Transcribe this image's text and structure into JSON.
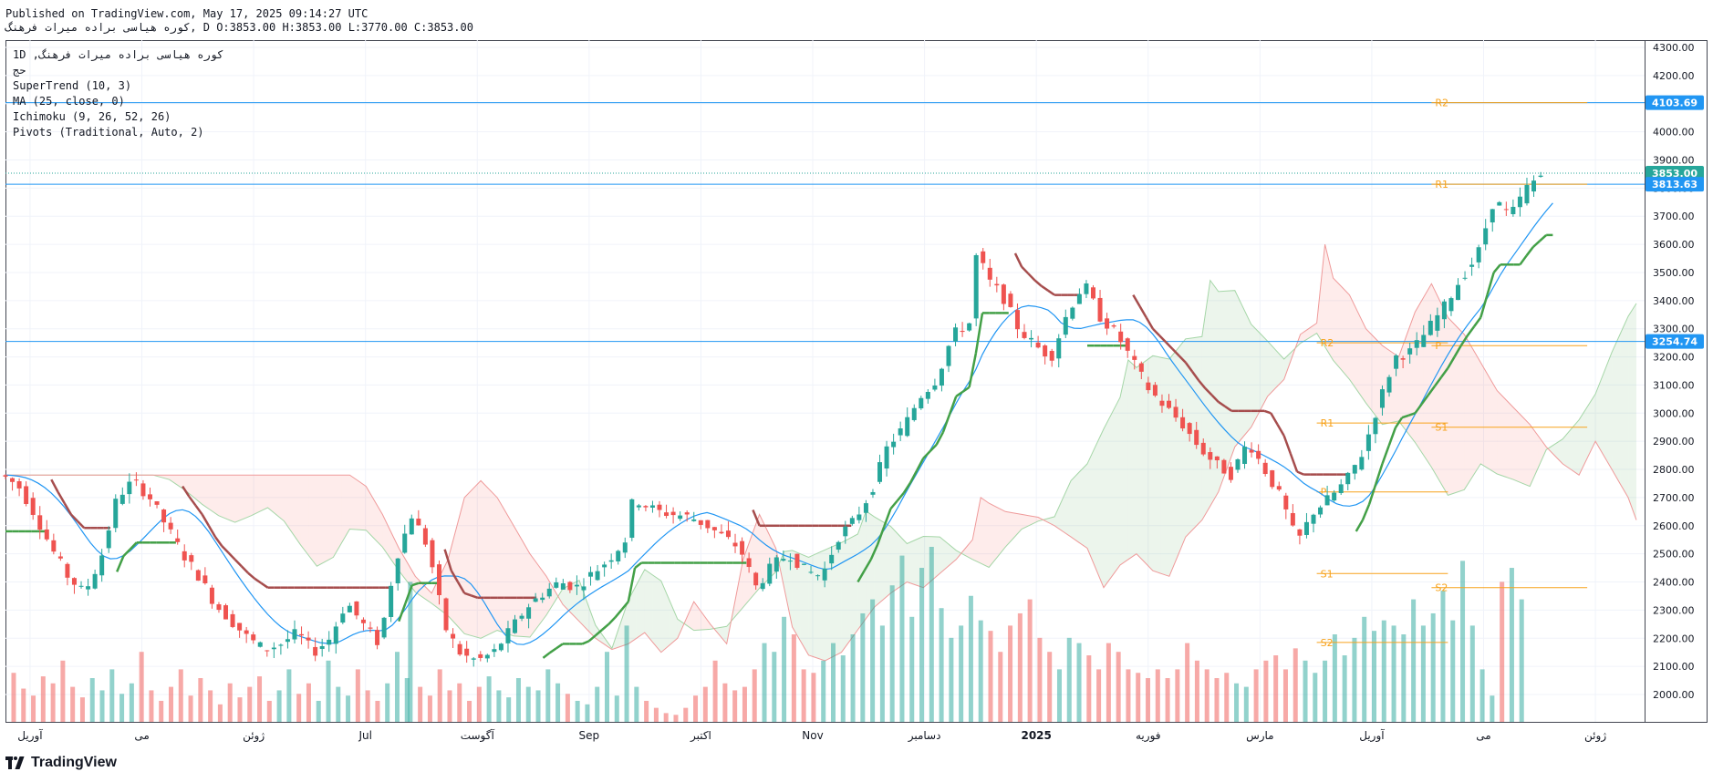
{
  "header": {
    "published": "Published on TradingView.com, May 17, 2025 09:14:27 UTC",
    "symbol_line": "ﮐﻮﺭﻩ ﻫﯿﺎﺳﯽ ﺑﺮاﺩﻩ ﻣﻴﺮاﺕ ﻓﺮﻫﻨﮓ, D O:3853.00 H:3853.00 L:3770.00 C:3853.00"
  },
  "legend": {
    "title": "1D ,ﮐﻮﺭﻩ ﻫﯿﺎﺳﯽ ﺑﺮاﺩﻩ ﻣﻴﺮاﺕ ﻓﺮﻫﻨﮓ",
    "sub": "ﺣﺞ",
    "indicators": [
      "SuperTrend (10, 3)",
      "MA (25, close, 0)",
      "Ichimoku (9, 26, 52, 26)",
      "Pivots (Traditional, Auto, 2)"
    ]
  },
  "footer": {
    "brand": "TradingView"
  },
  "chart_data": {
    "type": "candlestick",
    "ylim": [
      1900,
      4350
    ],
    "y_ticks": [
      2000,
      2100,
      2200,
      2300,
      2400,
      2500,
      2600,
      2700,
      2800,
      2900,
      3000,
      3100,
      3200,
      3300,
      3400,
      3500,
      3600,
      3700,
      3800,
      3900,
      4000,
      4100,
      4200,
      4300
    ],
    "x_ticks": [
      "آوریل",
      "می",
      "ژوئن",
      "Jul",
      "آگوست",
      "Sep",
      "اکتبر",
      "Nov",
      "دسامبر",
      "2025",
      "فوریه",
      "مارس",
      "آوریل",
      "می",
      "ژوئن"
    ],
    "price_labels": [
      {
        "value": 4103.69,
        "text": "4103.69",
        "color": "#2196f3"
      },
      {
        "value": 3853.0,
        "text": "3853.00",
        "color": "#26a69a"
      },
      {
        "value": 3813.63,
        "text": "3813.63",
        "color": "#2196f3"
      },
      {
        "value": 3254.74,
        "text": "3254.74",
        "color": "#2196f3"
      }
    ],
    "horizontal_lines": [
      4103.69,
      3813.63,
      3254.74
    ],
    "last_price": 3853.0,
    "pivot_levels": [
      {
        "label": "R2",
        "value": 4103.69,
        "from": 0.87,
        "to": 0.965
      },
      {
        "label": "R1",
        "value": 3813.63,
        "from": 0.87,
        "to": 0.965
      },
      {
        "label": "P",
        "value": 3240,
        "from": 0.87,
        "to": 0.965
      },
      {
        "label": "S1",
        "value": 2950,
        "from": 0.87,
        "to": 0.965
      },
      {
        "label": "S2",
        "value": 2380,
        "from": 0.87,
        "to": 0.965
      },
      {
        "label": "R2",
        "value": 3250,
        "from": 0.8,
        "to": 0.88
      },
      {
        "label": "R1",
        "value": 2965,
        "from": 0.8,
        "to": 0.88
      },
      {
        "label": "P",
        "value": 2720,
        "from": 0.8,
        "to": 0.88
      },
      {
        "label": "S1",
        "value": 2430,
        "from": 0.8,
        "to": 0.88
      },
      {
        "label": "S2",
        "value": 2185,
        "from": 0.8,
        "to": 0.88
      }
    ],
    "close_path": [
      [
        0.0,
        2780
      ],
      [
        0.01,
        2740
      ],
      [
        0.02,
        2640
      ],
      [
        0.03,
        2520
      ],
      [
        0.04,
        2420
      ],
      [
        0.05,
        2360
      ],
      [
        0.06,
        2480
      ],
      [
        0.07,
        2700
      ],
      [
        0.08,
        2760
      ],
      [
        0.09,
        2700
      ],
      [
        0.1,
        2600
      ],
      [
        0.11,
        2500
      ],
      [
        0.12,
        2420
      ],
      [
        0.13,
        2320
      ],
      [
        0.14,
        2260
      ],
      [
        0.15,
        2200
      ],
      [
        0.16,
        2160
      ],
      [
        0.17,
        2180
      ],
      [
        0.18,
        2220
      ],
      [
        0.19,
        2150
      ],
      [
        0.2,
        2200
      ],
      [
        0.21,
        2330
      ],
      [
        0.22,
        2250
      ],
      [
        0.23,
        2180
      ],
      [
        0.24,
        2480
      ],
      [
        0.25,
        2640
      ],
      [
        0.26,
        2520
      ],
      [
        0.27,
        2240
      ],
      [
        0.28,
        2140
      ],
      [
        0.29,
        2120
      ],
      [
        0.3,
        2150
      ],
      [
        0.31,
        2230
      ],
      [
        0.32,
        2310
      ],
      [
        0.33,
        2360
      ],
      [
        0.34,
        2400
      ],
      [
        0.35,
        2380
      ],
      [
        0.36,
        2430
      ],
      [
        0.37,
        2480
      ],
      [
        0.38,
        2550
      ],
      [
        0.385,
        2700
      ],
      [
        0.39,
        2680
      ],
      [
        0.4,
        2650
      ],
      [
        0.41,
        2640
      ],
      [
        0.42,
        2630
      ],
      [
        0.43,
        2600
      ],
      [
        0.44,
        2560
      ],
      [
        0.45,
        2520
      ],
      [
        0.46,
        2380
      ],
      [
        0.47,
        2460
      ],
      [
        0.48,
        2500
      ],
      [
        0.49,
        2440
      ],
      [
        0.5,
        2420
      ],
      [
        0.51,
        2560
      ],
      [
        0.52,
        2620
      ],
      [
        0.53,
        2720
      ],
      [
        0.54,
        2880
      ],
      [
        0.55,
        2950
      ],
      [
        0.56,
        3060
      ],
      [
        0.57,
        3120
      ],
      [
        0.58,
        3280
      ],
      [
        0.59,
        3320
      ],
      [
        0.595,
        3600
      ],
      [
        0.6,
        3480
      ],
      [
        0.61,
        3420
      ],
      [
        0.62,
        3300
      ],
      [
        0.63,
        3240
      ],
      [
        0.64,
        3200
      ],
      [
        0.65,
        3360
      ],
      [
        0.66,
        3460
      ],
      [
        0.67,
        3340
      ],
      [
        0.68,
        3280
      ],
      [
        0.69,
        3180
      ],
      [
        0.7,
        3080
      ],
      [
        0.71,
        3020
      ],
      [
        0.72,
        2960
      ],
      [
        0.73,
        2880
      ],
      [
        0.74,
        2820
      ],
      [
        0.75,
        2780
      ],
      [
        0.76,
        2900
      ],
      [
        0.77,
        2800
      ],
      [
        0.78,
        2700
      ],
      [
        0.79,
        2540
      ],
      [
        0.8,
        2650
      ],
      [
        0.81,
        2700
      ],
      [
        0.82,
        2760
      ],
      [
        0.83,
        2860
      ],
      [
        0.84,
        3040
      ],
      [
        0.85,
        3200
      ],
      [
        0.86,
        3220
      ],
      [
        0.87,
        3300
      ],
      [
        0.88,
        3380
      ],
      [
        0.89,
        3480
      ],
      [
        0.9,
        3560
      ],
      [
        0.91,
        3760
      ],
      [
        0.92,
        3700
      ],
      [
        0.93,
        3800
      ],
      [
        0.94,
        3853
      ]
    ],
    "volume": [
      [
        0.005,
        0.28
      ],
      [
        0.011,
        0.19
      ],
      [
        0.017,
        0.15
      ],
      [
        0.023,
        0.26
      ],
      [
        0.029,
        0.22
      ],
      [
        0.035,
        0.35
      ],
      [
        0.041,
        0.2
      ],
      [
        0.047,
        0.14
      ],
      [
        0.053,
        0.25
      ],
      [
        0.059,
        0.18
      ],
      [
        0.065,
        0.3
      ],
      [
        0.071,
        0.16
      ],
      [
        0.077,
        0.22
      ],
      [
        0.083,
        0.4
      ],
      [
        0.089,
        0.18
      ],
      [
        0.095,
        0.12
      ],
      [
        0.101,
        0.2
      ],
      [
        0.107,
        0.3
      ],
      [
        0.113,
        0.15
      ],
      [
        0.119,
        0.25
      ],
      [
        0.125,
        0.18
      ],
      [
        0.131,
        0.1
      ],
      [
        0.137,
        0.22
      ],
      [
        0.143,
        0.14
      ],
      [
        0.149,
        0.2
      ],
      [
        0.155,
        0.26
      ],
      [
        0.161,
        0.12
      ],
      [
        0.167,
        0.18
      ],
      [
        0.173,
        0.3
      ],
      [
        0.179,
        0.16
      ],
      [
        0.185,
        0.22
      ],
      [
        0.191,
        0.12
      ],
      [
        0.197,
        0.35
      ],
      [
        0.203,
        0.2
      ],
      [
        0.209,
        0.15
      ],
      [
        0.215,
        0.3
      ],
      [
        0.221,
        0.18
      ],
      [
        0.227,
        0.12
      ],
      [
        0.233,
        0.22
      ],
      [
        0.239,
        0.4
      ],
      [
        0.245,
        0.25
      ],
      [
        0.247,
        0.8
      ],
      [
        0.253,
        0.2
      ],
      [
        0.259,
        0.15
      ],
      [
        0.265,
        0.3
      ],
      [
        0.271,
        0.18
      ],
      [
        0.277,
        0.22
      ],
      [
        0.283,
        0.12
      ],
      [
        0.289,
        0.2
      ],
      [
        0.295,
        0.26
      ],
      [
        0.301,
        0.18
      ],
      [
        0.307,
        0.14
      ],
      [
        0.313,
        0.25
      ],
      [
        0.319,
        0.2
      ],
      [
        0.325,
        0.18
      ],
      [
        0.331,
        0.3
      ],
      [
        0.337,
        0.22
      ],
      [
        0.343,
        0.16
      ],
      [
        0.349,
        0.12
      ],
      [
        0.355,
        0.1
      ],
      [
        0.361,
        0.2
      ],
      [
        0.367,
        0.4
      ],
      [
        0.373,
        0.15
      ],
      [
        0.379,
        0.55
      ],
      [
        0.385,
        0.2
      ],
      [
        0.391,
        0.12
      ],
      [
        0.397,
        0.08
      ],
      [
        0.403,
        0.05
      ],
      [
        0.409,
        0.04
      ],
      [
        0.415,
        0.08
      ],
      [
        0.421,
        0.15
      ],
      [
        0.427,
        0.2
      ],
      [
        0.433,
        0.35
      ],
      [
        0.439,
        0.22
      ],
      [
        0.445,
        0.18
      ],
      [
        0.451,
        0.2
      ],
      [
        0.457,
        0.3
      ],
      [
        0.463,
        0.45
      ],
      [
        0.469,
        0.4
      ],
      [
        0.475,
        0.6
      ],
      [
        0.481,
        0.5
      ],
      [
        0.487,
        0.3
      ],
      [
        0.493,
        0.28
      ],
      [
        0.499,
        0.35
      ],
      [
        0.505,
        0.45
      ],
      [
        0.511,
        0.38
      ],
      [
        0.517,
        0.5
      ],
      [
        0.523,
        0.62
      ],
      [
        0.529,
        0.7
      ],
      [
        0.535,
        0.55
      ],
      [
        0.541,
        0.78
      ],
      [
        0.547,
        0.95
      ],
      [
        0.553,
        0.6
      ],
      [
        0.559,
        0.88
      ],
      [
        0.565,
        1.0
      ],
      [
        0.571,
        0.65
      ],
      [
        0.577,
        0.48
      ],
      [
        0.583,
        0.55
      ],
      [
        0.589,
        0.72
      ],
      [
        0.595,
        0.58
      ],
      [
        0.601,
        0.52
      ],
      [
        0.607,
        0.4
      ],
      [
        0.613,
        0.55
      ],
      [
        0.619,
        0.62
      ],
      [
        0.625,
        0.7
      ],
      [
        0.631,
        0.48
      ],
      [
        0.637,
        0.4
      ],
      [
        0.643,
        0.3
      ],
      [
        0.649,
        0.48
      ],
      [
        0.655,
        0.45
      ],
      [
        0.661,
        0.38
      ],
      [
        0.667,
        0.3
      ],
      [
        0.673,
        0.45
      ],
      [
        0.679,
        0.4
      ],
      [
        0.685,
        0.3
      ],
      [
        0.691,
        0.28
      ],
      [
        0.697,
        0.25
      ],
      [
        0.703,
        0.3
      ],
      [
        0.709,
        0.25
      ],
      [
        0.715,
        0.3
      ],
      [
        0.721,
        0.45
      ],
      [
        0.727,
        0.35
      ],
      [
        0.733,
        0.3
      ],
      [
        0.739,
        0.25
      ],
      [
        0.745,
        0.28
      ],
      [
        0.751,
        0.22
      ],
      [
        0.757,
        0.2
      ],
      [
        0.763,
        0.3
      ],
      [
        0.769,
        0.35
      ],
      [
        0.775,
        0.38
      ],
      [
        0.781,
        0.3
      ],
      [
        0.787,
        0.42
      ],
      [
        0.793,
        0.35
      ],
      [
        0.799,
        0.28
      ],
      [
        0.805,
        0.35
      ],
      [
        0.811,
        0.5
      ],
      [
        0.817,
        0.38
      ],
      [
        0.823,
        0.48
      ],
      [
        0.829,
        0.6
      ],
      [
        0.835,
        0.52
      ],
      [
        0.841,
        0.58
      ],
      [
        0.847,
        0.55
      ],
      [
        0.853,
        0.5
      ],
      [
        0.859,
        0.7
      ],
      [
        0.865,
        0.55
      ],
      [
        0.871,
        0.62
      ],
      [
        0.877,
        0.75
      ],
      [
        0.883,
        0.58
      ],
      [
        0.889,
        0.92
      ],
      [
        0.895,
        0.55
      ],
      [
        0.901,
        0.3
      ],
      [
        0.907,
        0.15
      ],
      [
        0.913,
        0.8
      ],
      [
        0.919,
        0.88
      ],
      [
        0.925,
        0.7
      ]
    ]
  }
}
